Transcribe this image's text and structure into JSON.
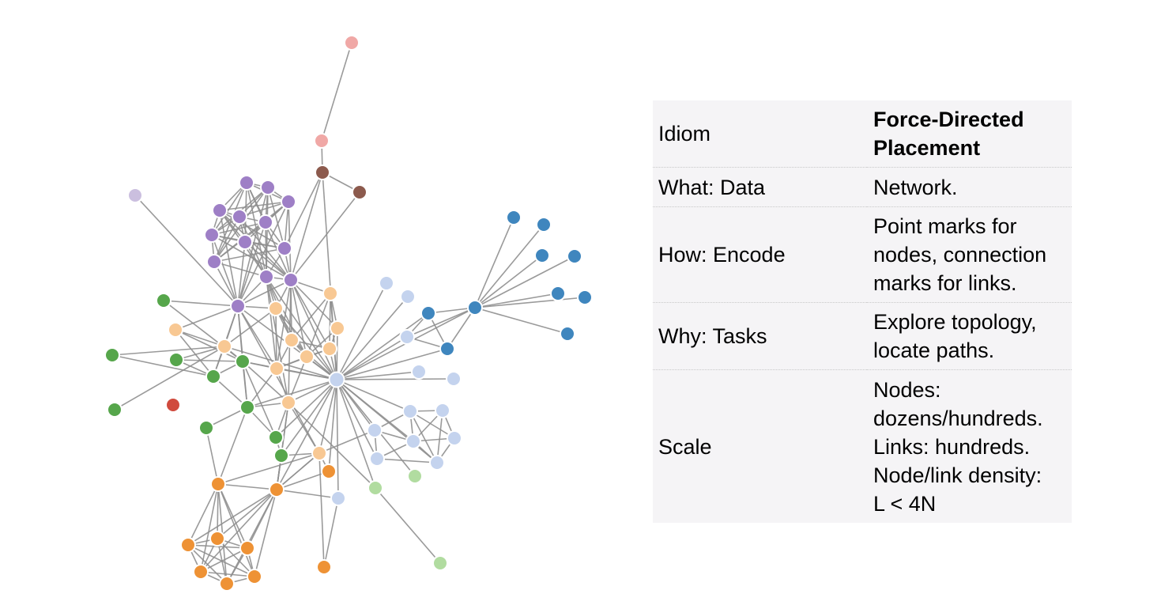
{
  "table": {
    "rows": [
      {
        "key": "Idiom",
        "value": "Force-Directed\nPlacement"
      },
      {
        "key": "What: Data",
        "value": "Network."
      },
      {
        "key": "How: Encode",
        "value": "Point marks for\nnodes, connection\nmarks for links."
      },
      {
        "key": "Why: Tasks",
        "value": "Explore topology,\nlocate paths."
      },
      {
        "key": "Scale",
        "value": "Nodes:\ndozens/hundreds.\nLinks: hundreds.\nNode/link density:\nL < 4N"
      }
    ]
  },
  "graph": {
    "groups": {
      "pink": "#f0a8a6",
      "brown": "#8c5a4d",
      "purple": "#9e7fc6",
      "lavender": "#cbbfdf",
      "peach": "#f8c893",
      "green": "#56a64b",
      "red": "#d04a3d",
      "lightblue": "#c4d3ee",
      "blue": "#3f86be",
      "orange": "#ee9235",
      "lightgreen": "#b1dca0"
    }
  }
}
